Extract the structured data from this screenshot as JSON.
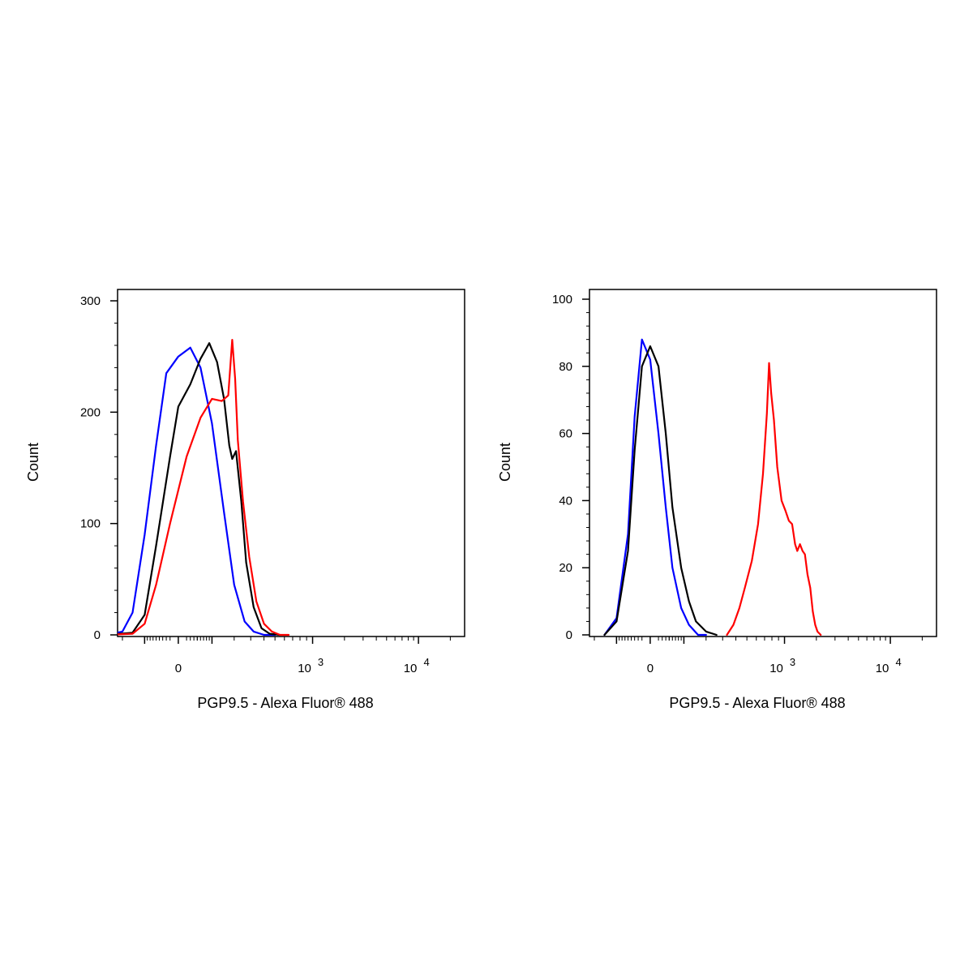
{
  "chart_data": [
    {
      "type": "line",
      "xlabel": "PGP9.5 - Alexa Fluor® 488",
      "ylabel": "Count",
      "ylim": [
        0,
        300
      ],
      "x_scale": "logicle",
      "yticks": [
        0,
        100,
        200,
        300
      ],
      "xticks": [
        {
          "value": 0,
          "base": "0",
          "exp": ""
        },
        {
          "value": 1000,
          "base": "10",
          "exp": "3"
        },
        {
          "value": 10000,
          "base": "10",
          "exp": "4"
        }
      ],
      "grid": false,
      "series": [
        {
          "color": "#0000ff",
          "x": [
            -300,
            -200,
            -150,
            -100,
            -60,
            -30,
            0,
            30,
            60,
            100,
            150,
            200,
            260,
            320,
            400,
            500
          ],
          "y": [
            0,
            3,
            20,
            90,
            170,
            235,
            250,
            258,
            240,
            190,
            110,
            45,
            12,
            3,
            0,
            0
          ]
        },
        {
          "color": "#000000",
          "x": [
            -300,
            -150,
            -100,
            -60,
            -20,
            0,
            30,
            60,
            90,
            120,
            150,
            175,
            190,
            210,
            240,
            270,
            320,
            380,
            450,
            550
          ],
          "y": [
            0,
            2,
            18,
            80,
            160,
            205,
            225,
            248,
            262,
            245,
            212,
            170,
            158,
            165,
            120,
            65,
            25,
            6,
            1,
            0
          ]
        },
        {
          "color": "#ff0000",
          "x": [
            -300,
            -150,
            -100,
            -60,
            -20,
            20,
            60,
            100,
            140,
            170,
            190,
            205,
            220,
            250,
            290,
            340,
            400,
            470,
            550,
            650
          ],
          "y": [
            0,
            1,
            10,
            45,
            100,
            160,
            195,
            212,
            210,
            215,
            265,
            230,
            175,
            120,
            70,
            30,
            10,
            3,
            0,
            0
          ]
        }
      ]
    },
    {
      "type": "line",
      "xlabel": "PGP9.5 - Alexa Fluor® 488",
      "ylabel": "Count",
      "ylim": [
        0,
        100
      ],
      "x_scale": "logicle",
      "yticks": [
        0,
        20,
        40,
        60,
        80,
        100
      ],
      "xticks": [
        {
          "value": 0,
          "base": "0",
          "exp": ""
        },
        {
          "value": 1000,
          "base": "10",
          "exp": "3"
        },
        {
          "value": 10000,
          "base": "10",
          "exp": "4"
        }
      ],
      "grid": false,
      "series": [
        {
          "color": "#0000ff",
          "x": [
            -150,
            -100,
            -60,
            -40,
            -20,
            0,
            20,
            40,
            60,
            90,
            120,
            160,
            200
          ],
          "y": [
            0,
            5,
            30,
            65,
            88,
            82,
            60,
            38,
            20,
            8,
            3,
            0,
            0
          ]
        },
        {
          "color": "#000000",
          "x": [
            -150,
            -100,
            -60,
            -40,
            -20,
            0,
            20,
            40,
            60,
            90,
            120,
            150,
            200,
            260
          ],
          "y": [
            0,
            4,
            25,
            55,
            80,
            86,
            80,
            60,
            38,
            20,
            10,
            4,
            1,
            0
          ]
        },
        {
          "color": "#ff0000",
          "x": [
            330,
            380,
            430,
            480,
            550,
            620,
            680,
            730,
            760,
            790,
            830,
            880,
            950,
            1020,
            1100,
            1180,
            1260,
            1320,
            1400,
            1480,
            1560,
            1650,
            1750,
            1850,
            1950,
            2050,
            2200
          ],
          "y": [
            0,
            3,
            8,
            14,
            22,
            33,
            48,
            66,
            81,
            72,
            64,
            50,
            40,
            37,
            34,
            33,
            27,
            25,
            27,
            25,
            24,
            18,
            14,
            7,
            3,
            1,
            0
          ]
        }
      ]
    }
  ]
}
